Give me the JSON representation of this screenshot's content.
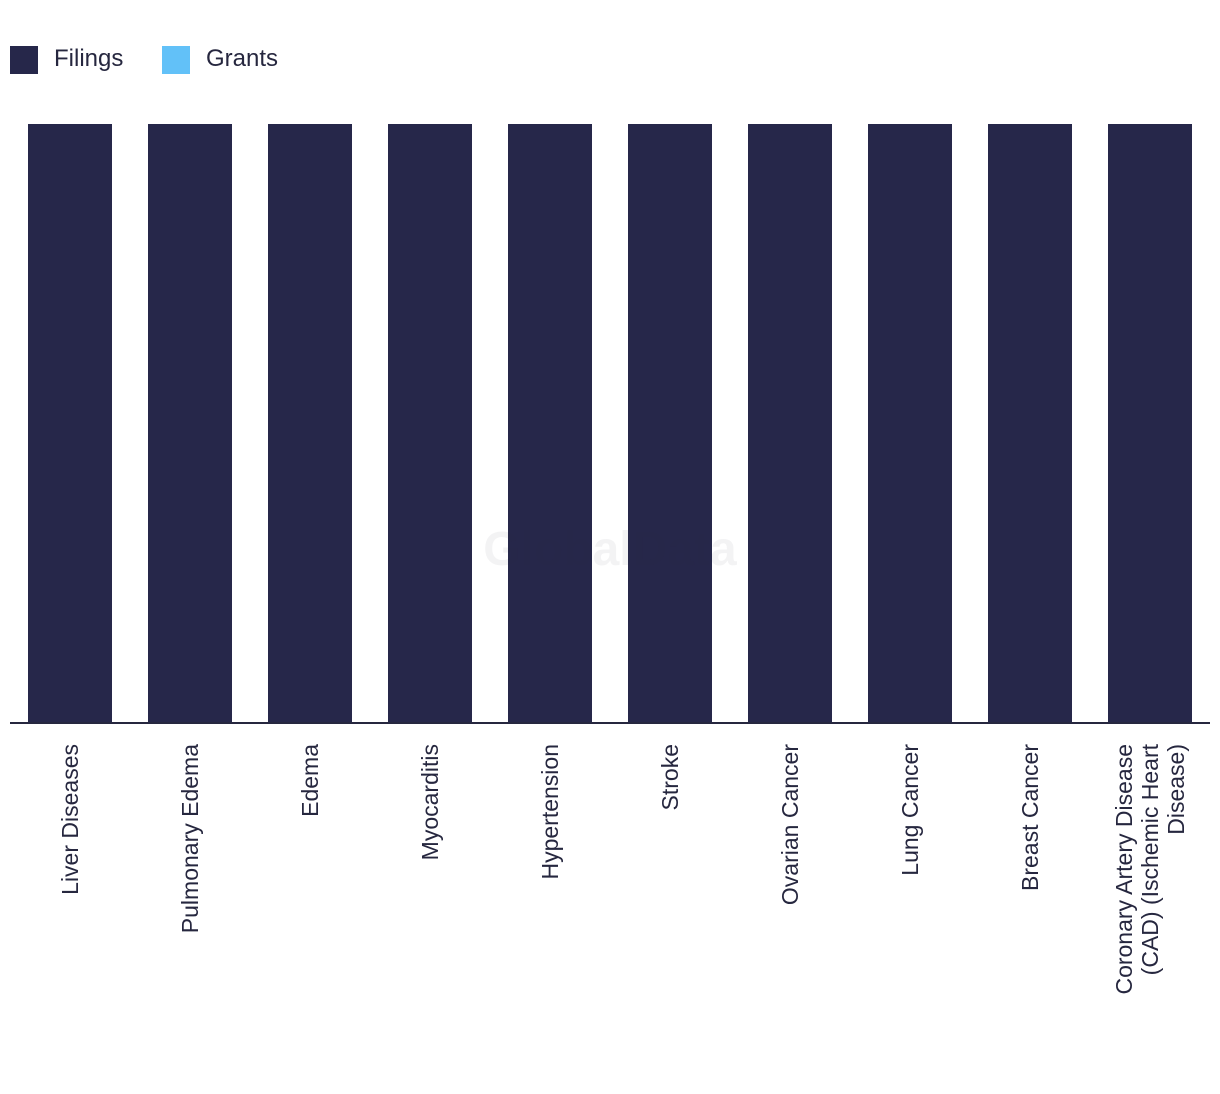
{
  "watermark": "GlobalData",
  "colors": {
    "filings": "#26274a",
    "grants": "#62c1f8",
    "axis": "#26273f"
  },
  "legend": [
    {
      "label": "Filings",
      "color": "#26274a"
    },
    {
      "label": "Grants",
      "color": "#62c1f8"
    }
  ],
  "chart_data": {
    "type": "bar",
    "stacked": true,
    "categories": [
      [
        "Liver Diseases"
      ],
      [
        "Pulmonary Edema"
      ],
      [
        "Edema"
      ],
      [
        "Myocarditis"
      ],
      [
        "Hypertension"
      ],
      [
        "Stroke"
      ],
      [
        "Ovarian Cancer"
      ],
      [
        "Lung Cancer"
      ],
      [
        "Breast Cancer"
      ],
      [
        "Coronary Artery Disease",
        "(CAD) (Ischemic Heart",
        "Disease)"
      ]
    ],
    "series": [
      {
        "name": "Filings",
        "values": [
          1,
          1,
          1,
          1,
          1,
          1,
          1,
          1,
          1,
          1
        ]
      },
      {
        "name": "Grants",
        "values": [
          0,
          0,
          0,
          0,
          0,
          0,
          0,
          0,
          0,
          0
        ]
      }
    ],
    "ylim": [
      0,
      1
    ],
    "grid": false,
    "legend_position": "top-left"
  }
}
